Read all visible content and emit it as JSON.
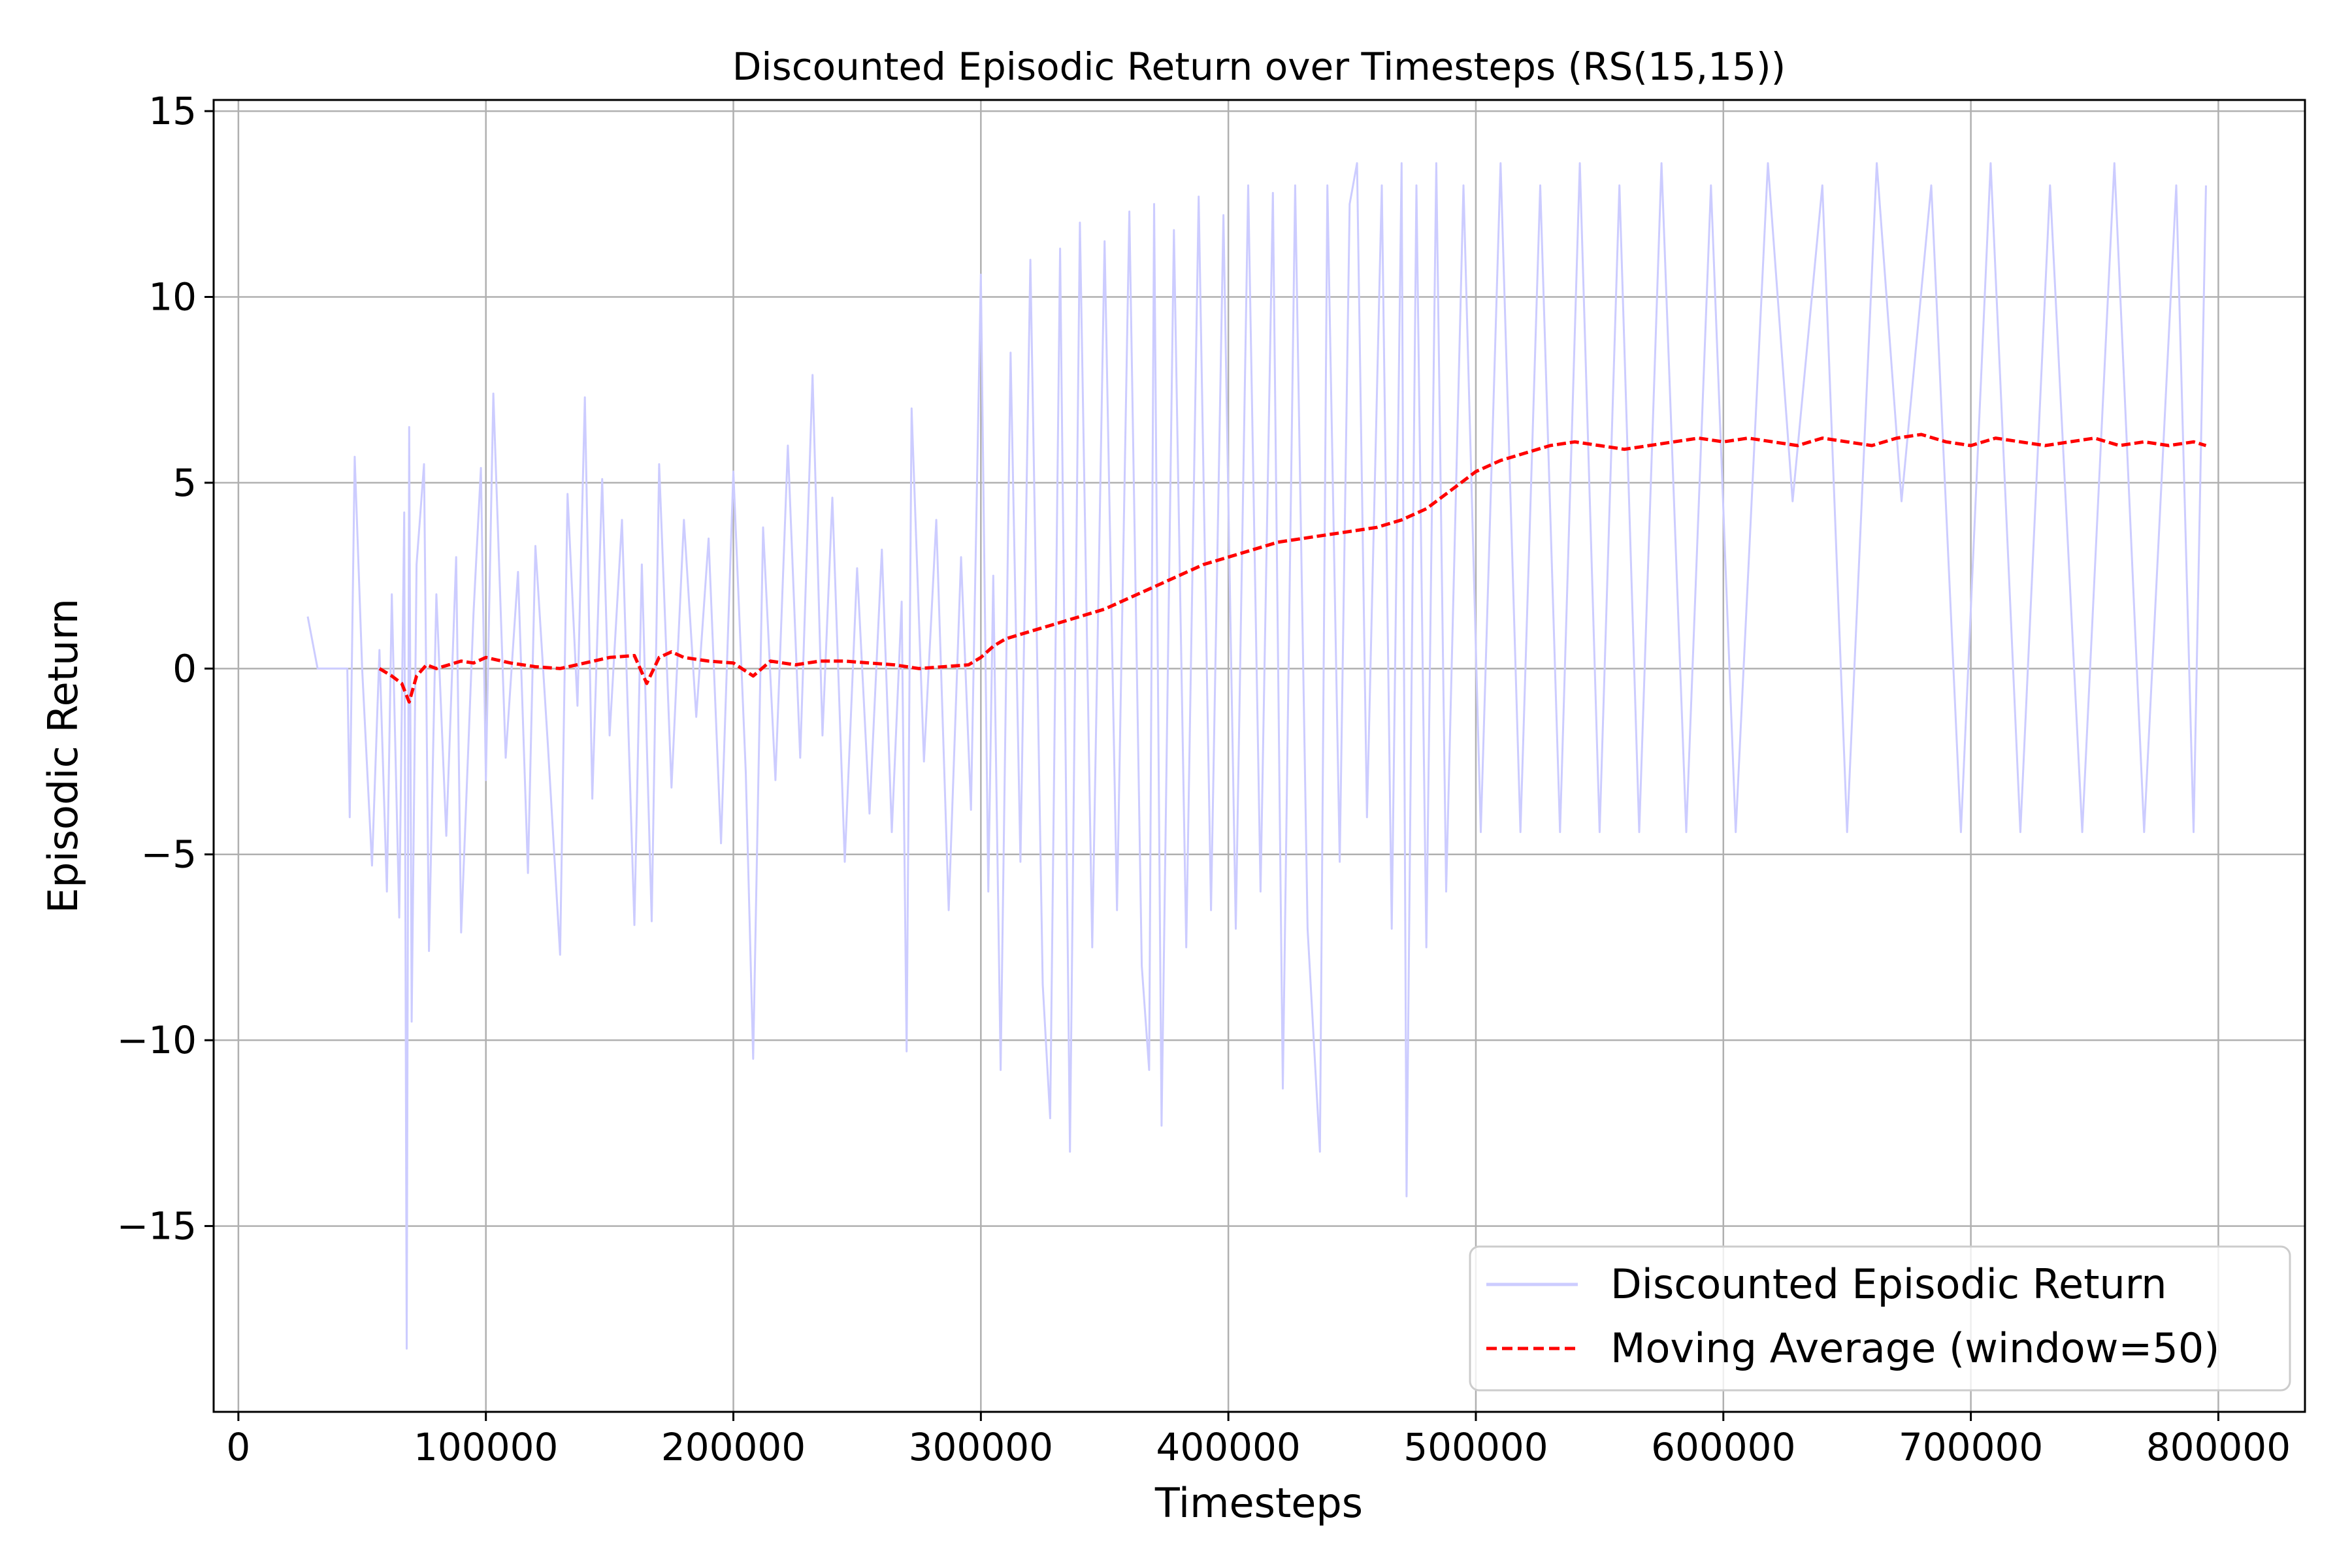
{
  "chart_data": {
    "type": "line",
    "title": "Discounted Episodic Return over Timesteps (RS(15,15))",
    "xlabel": "Timesteps",
    "ylabel": "Episodic Return",
    "xlim": [
      -10000,
      835000
    ],
    "ylim": [
      -20,
      15.3
    ],
    "grid": true,
    "legend_position": "lower-right",
    "x_ticks": [
      0,
      100000,
      200000,
      300000,
      400000,
      500000,
      600000,
      700000,
      800000
    ],
    "x_tick_labels": [
      "0",
      "100000",
      "200000",
      "300000",
      "400000",
      "500000",
      "600000",
      "700000",
      "800000"
    ],
    "y_ticks": [
      15,
      10,
      5,
      0,
      -5,
      -10,
      -15
    ],
    "y_tick_labels": [
      "15",
      "10",
      "5",
      "0",
      "−5",
      "−10",
      "−15"
    ],
    "colors": {
      "raw_series": "#ccccff",
      "moving_average": "#ff0000",
      "grid": "#b0b0b0"
    },
    "series": [
      {
        "name": "Discounted Episodic Return",
        "style": "solid",
        "points": [
          [
            28000,
            1.4
          ],
          [
            32000,
            0.0
          ],
          [
            44000,
            0.0
          ],
          [
            45000,
            -4.0
          ],
          [
            47000,
            5.7
          ],
          [
            50000,
            0.0
          ],
          [
            54000,
            -5.3
          ],
          [
            57000,
            0.5
          ],
          [
            60000,
            -6.0
          ],
          [
            62000,
            2.0
          ],
          [
            65000,
            -6.7
          ],
          [
            67000,
            4.2
          ],
          [
            68000,
            -18.3
          ],
          [
            69000,
            6.5
          ],
          [
            70000,
            -9.5
          ],
          [
            72000,
            2.8
          ],
          [
            75000,
            5.5
          ],
          [
            77000,
            -7.6
          ],
          [
            80000,
            2.0
          ],
          [
            84000,
            -4.5
          ],
          [
            88000,
            3.0
          ],
          [
            90000,
            -7.1
          ],
          [
            95000,
            1.5
          ],
          [
            98000,
            5.4
          ],
          [
            100000,
            -3.0
          ],
          [
            103000,
            7.4
          ],
          [
            108000,
            -2.4
          ],
          [
            113000,
            2.6
          ],
          [
            117000,
            -5.5
          ],
          [
            120000,
            3.3
          ],
          [
            125000,
            -2.0
          ],
          [
            130000,
            -7.7
          ],
          [
            133000,
            4.7
          ],
          [
            137000,
            -1.0
          ],
          [
            140000,
            7.3
          ],
          [
            143000,
            -3.5
          ],
          [
            147000,
            5.1
          ],
          [
            150000,
            -1.8
          ],
          [
            155000,
            4.0
          ],
          [
            160000,
            -6.9
          ],
          [
            163000,
            2.8
          ],
          [
            167000,
            -6.8
          ],
          [
            170000,
            5.5
          ],
          [
            175000,
            -3.2
          ],
          [
            180000,
            4.0
          ],
          [
            185000,
            -1.3
          ],
          [
            190000,
            3.5
          ],
          [
            195000,
            -4.7
          ],
          [
            200000,
            5.3
          ],
          [
            205000,
            -2.8
          ],
          [
            208000,
            -10.5
          ],
          [
            212000,
            3.8
          ],
          [
            217000,
            -3.0
          ],
          [
            222000,
            6.0
          ],
          [
            227000,
            -2.4
          ],
          [
            232000,
            7.9
          ],
          [
            236000,
            -1.8
          ],
          [
            240000,
            4.6
          ],
          [
            245000,
            -5.2
          ],
          [
            250000,
            2.7
          ],
          [
            255000,
            -3.9
          ],
          [
            260000,
            3.2
          ],
          [
            264000,
            -4.4
          ],
          [
            268000,
            1.8
          ],
          [
            270000,
            -10.3
          ],
          [
            272000,
            7.0
          ],
          [
            277000,
            -2.5
          ],
          [
            282000,
            4.0
          ],
          [
            287000,
            -6.5
          ],
          [
            292000,
            3.0
          ],
          [
            296000,
            -3.8
          ],
          [
            300000,
            10.6
          ],
          [
            303000,
            -6.0
          ],
          [
            305000,
            2.5
          ],
          [
            308000,
            -10.8
          ],
          [
            312000,
            8.5
          ],
          [
            316000,
            -5.2
          ],
          [
            320000,
            11.0
          ],
          [
            325000,
            -8.5
          ],
          [
            328000,
            -12.1
          ],
          [
            332000,
            11.3
          ],
          [
            336000,
            -13.0
          ],
          [
            340000,
            12.0
          ],
          [
            345000,
            -7.5
          ],
          [
            350000,
            11.5
          ],
          [
            355000,
            -6.5
          ],
          [
            360000,
            12.3
          ],
          [
            365000,
            -8.0
          ],
          [
            368000,
            -10.8
          ],
          [
            370000,
            12.5
          ],
          [
            373000,
            -12.3
          ],
          [
            378000,
            11.8
          ],
          [
            383000,
            -7.5
          ],
          [
            388000,
            12.7
          ],
          [
            393000,
            -6.5
          ],
          [
            398000,
            12.2
          ],
          [
            403000,
            -7.0
          ],
          [
            408000,
            13.0
          ],
          [
            413000,
            -6.0
          ],
          [
            418000,
            12.8
          ],
          [
            422000,
            -11.3
          ],
          [
            427000,
            13.0
          ],
          [
            432000,
            -7.0
          ],
          [
            437000,
            -13.0
          ],
          [
            440000,
            13.0
          ],
          [
            445000,
            -5.2
          ],
          [
            449000,
            12.5
          ],
          [
            452000,
            13.6
          ],
          [
            456000,
            -4.0
          ],
          [
            462000,
            13.0
          ],
          [
            466000,
            -7.0
          ],
          [
            470000,
            13.6
          ],
          [
            472000,
            -14.2
          ],
          [
            476000,
            13.0
          ],
          [
            480000,
            -7.5
          ],
          [
            484000,
            13.6
          ],
          [
            488000,
            -6.0
          ],
          [
            495000,
            13.0
          ],
          [
            502000,
            -4.4
          ],
          [
            510000,
            13.6
          ],
          [
            518000,
            -4.4
          ],
          [
            526000,
            13.0
          ],
          [
            534000,
            -4.4
          ],
          [
            542000,
            13.6
          ],
          [
            550000,
            -4.4
          ],
          [
            558000,
            13.0
          ],
          [
            566000,
            -4.4
          ],
          [
            575000,
            13.6
          ],
          [
            585000,
            -4.4
          ],
          [
            595000,
            13.0
          ],
          [
            605000,
            -4.4
          ],
          [
            618000,
            13.6
          ],
          [
            628000,
            4.5
          ],
          [
            640000,
            13.0
          ],
          [
            650000,
            -4.4
          ],
          [
            662000,
            13.6
          ],
          [
            672000,
            4.5
          ],
          [
            684000,
            13.0
          ],
          [
            696000,
            -4.4
          ],
          [
            708000,
            13.6
          ],
          [
            720000,
            -4.4
          ],
          [
            732000,
            13.0
          ],
          [
            745000,
            -4.4
          ],
          [
            758000,
            13.6
          ],
          [
            770000,
            -4.4
          ],
          [
            783000,
            13.0
          ],
          [
            790000,
            -4.4
          ],
          [
            795000,
            13.0
          ]
        ]
      },
      {
        "name": "Moving Average (window=50)",
        "style": "dashed",
        "points": [
          [
            57000,
            0.0
          ],
          [
            62000,
            -0.2
          ],
          [
            66000,
            -0.4
          ],
          [
            69000,
            -0.9
          ],
          [
            72000,
            -0.2
          ],
          [
            76000,
            0.1
          ],
          [
            80000,
            0.0
          ],
          [
            85000,
            0.1
          ],
          [
            90000,
            0.2
          ],
          [
            95000,
            0.15
          ],
          [
            100000,
            0.3
          ],
          [
            110000,
            0.15
          ],
          [
            120000,
            0.05
          ],
          [
            130000,
            0.0
          ],
          [
            140000,
            0.15
          ],
          [
            150000,
            0.3
          ],
          [
            160000,
            0.35
          ],
          [
            165000,
            -0.4
          ],
          [
            170000,
            0.3
          ],
          [
            175000,
            0.45
          ],
          [
            180000,
            0.3
          ],
          [
            190000,
            0.2
          ],
          [
            200000,
            0.15
          ],
          [
            208000,
            -0.2
          ],
          [
            215000,
            0.2
          ],
          [
            225000,
            0.1
          ],
          [
            235000,
            0.2
          ],
          [
            245000,
            0.2
          ],
          [
            255000,
            0.15
          ],
          [
            265000,
            0.1
          ],
          [
            275000,
            0.0
          ],
          [
            285000,
            0.05
          ],
          [
            295000,
            0.1
          ],
          [
            300000,
            0.3
          ],
          [
            305000,
            0.6
          ],
          [
            310000,
            0.8
          ],
          [
            320000,
            1.0
          ],
          [
            330000,
            1.2
          ],
          [
            340000,
            1.4
          ],
          [
            350000,
            1.6
          ],
          [
            360000,
            1.9
          ],
          [
            370000,
            2.2
          ],
          [
            380000,
            2.5
          ],
          [
            390000,
            2.8
          ],
          [
            400000,
            3.0
          ],
          [
            410000,
            3.2
          ],
          [
            420000,
            3.4
          ],
          [
            430000,
            3.5
          ],
          [
            440000,
            3.6
          ],
          [
            450000,
            3.7
          ],
          [
            460000,
            3.8
          ],
          [
            470000,
            4.0
          ],
          [
            480000,
            4.3
          ],
          [
            490000,
            4.8
          ],
          [
            500000,
            5.3
          ],
          [
            510000,
            5.6
          ],
          [
            520000,
            5.8
          ],
          [
            530000,
            6.0
          ],
          [
            540000,
            6.1
          ],
          [
            550000,
            6.0
          ],
          [
            560000,
            5.9
          ],
          [
            570000,
            6.0
          ],
          [
            580000,
            6.1
          ],
          [
            590000,
            6.2
          ],
          [
            600000,
            6.1
          ],
          [
            610000,
            6.2
          ],
          [
            620000,
            6.1
          ],
          [
            630000,
            6.0
          ],
          [
            640000,
            6.2
          ],
          [
            650000,
            6.1
          ],
          [
            660000,
            6.0
          ],
          [
            670000,
            6.2
          ],
          [
            680000,
            6.3
          ],
          [
            690000,
            6.1
          ],
          [
            700000,
            6.0
          ],
          [
            710000,
            6.2
          ],
          [
            720000,
            6.1
          ],
          [
            730000,
            6.0
          ],
          [
            740000,
            6.1
          ],
          [
            750000,
            6.2
          ],
          [
            760000,
            6.0
          ],
          [
            770000,
            6.1
          ],
          [
            780000,
            6.0
          ],
          [
            790000,
            6.1
          ],
          [
            795000,
            6.0
          ]
        ]
      }
    ]
  }
}
